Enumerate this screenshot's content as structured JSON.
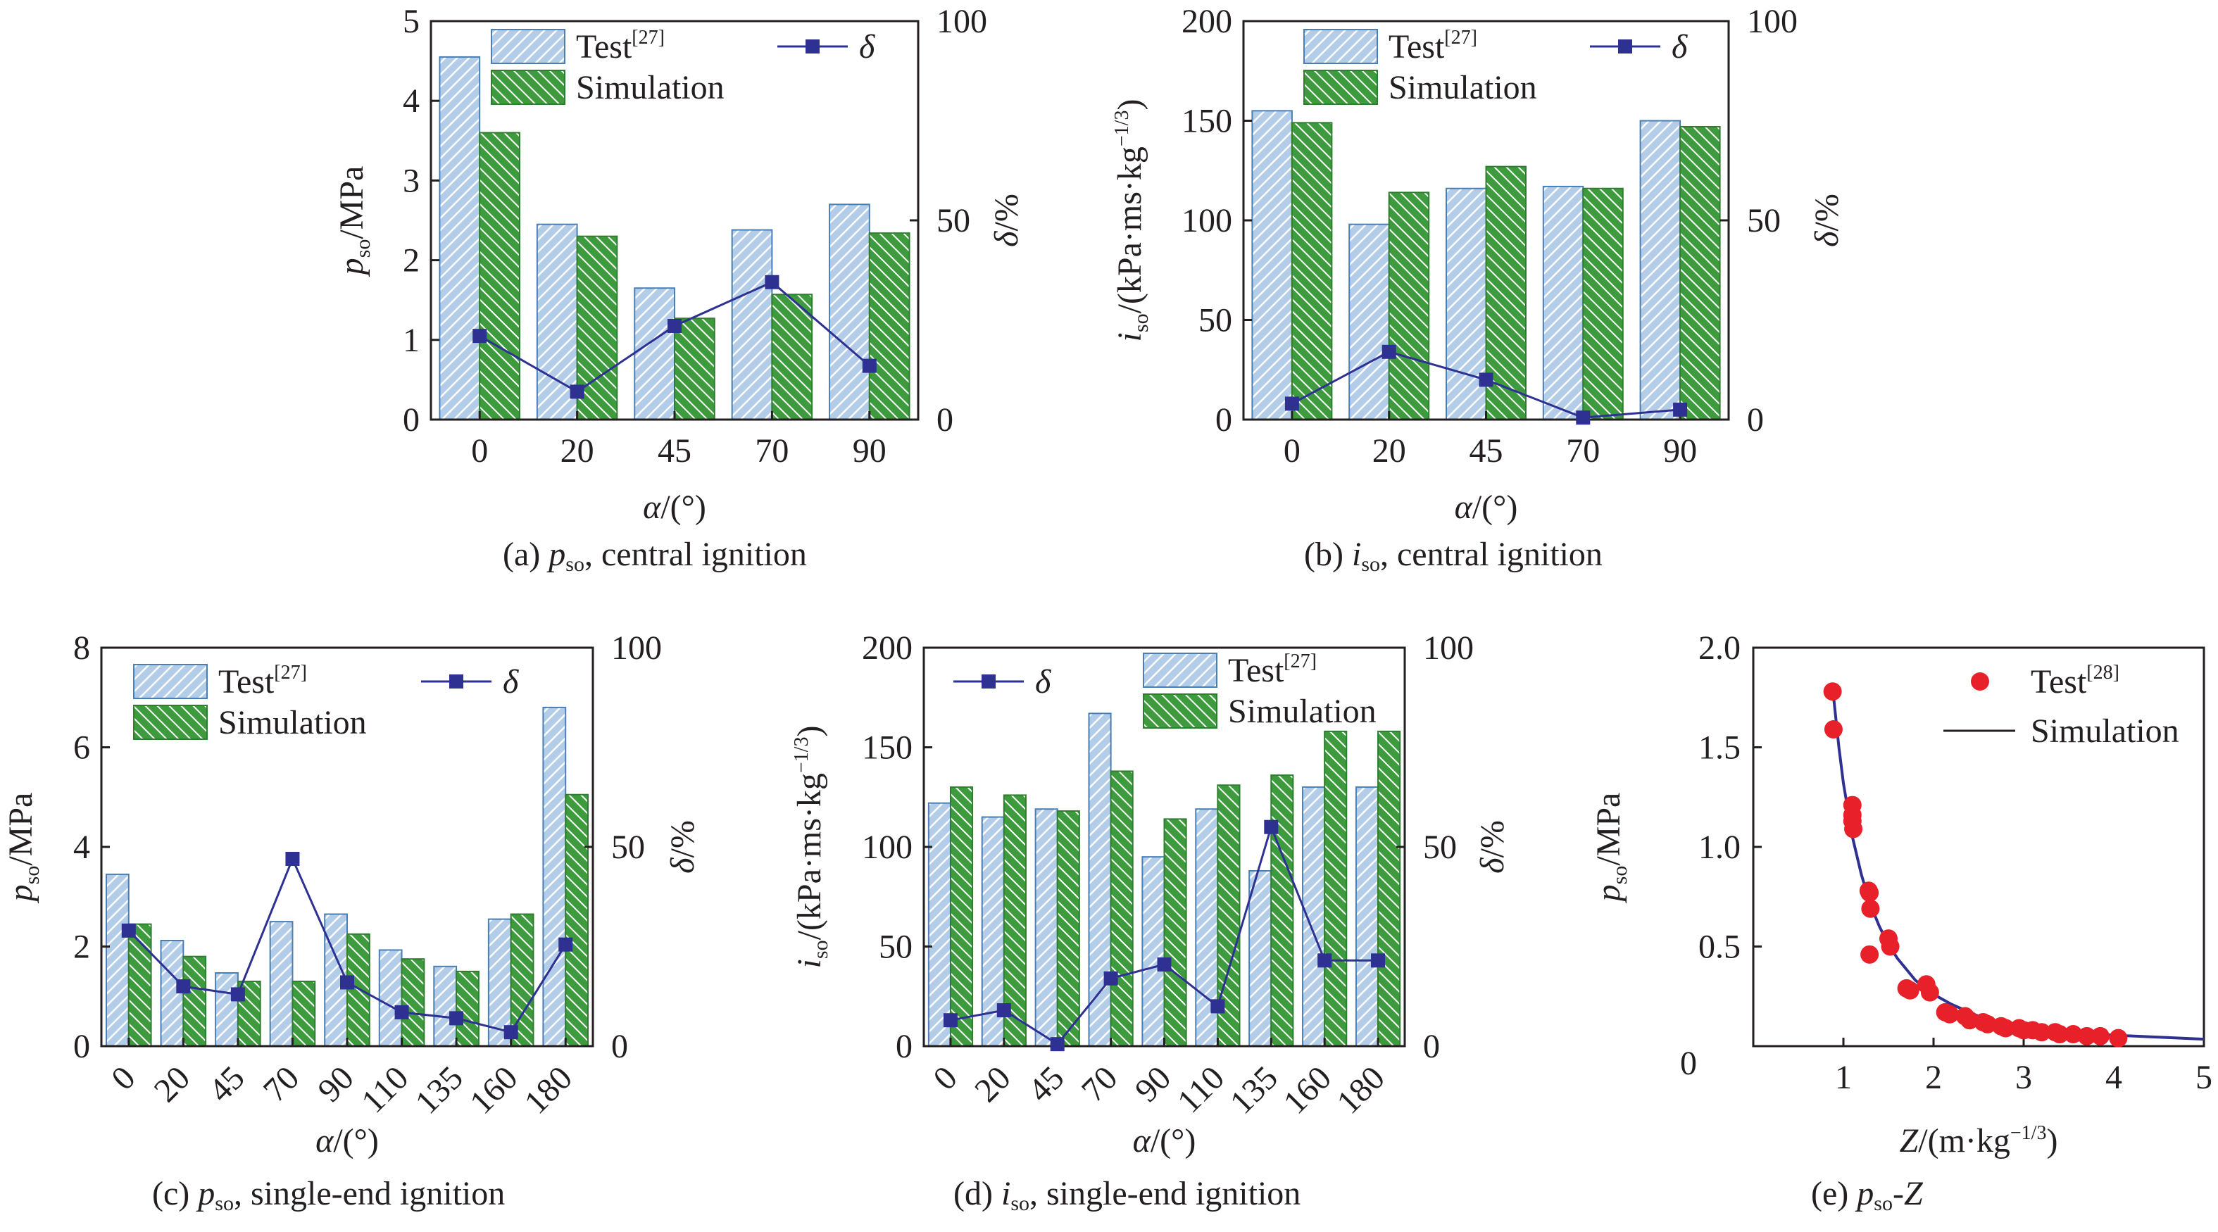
{
  "chart_data": [
    {
      "id": "a",
      "type": "bar",
      "caption": {
        "label": "(a)",
        "symbol": "p",
        "sub": "so",
        "text": ", central ignition"
      },
      "categories": [
        "0",
        "20",
        "45",
        "70",
        "90"
      ],
      "series": [
        {
          "name": "Test",
          "ref": "[27]",
          "values": [
            4.55,
            2.45,
            1.65,
            2.38,
            2.7
          ],
          "color": "#5b8fc9"
        },
        {
          "name": "Simulation",
          "values": [
            3.6,
            2.3,
            1.27,
            1.57,
            2.34
          ],
          "color": "#3d9a3d"
        }
      ],
      "line_series": {
        "name": "δ",
        "values": [
          21,
          7,
          23.5,
          34.5,
          13.5
        ],
        "color": "#2e3192"
      },
      "xlabel": {
        "sym": "α",
        "unit": "/(°)"
      },
      "ylabel": {
        "sym": "p",
        "sub": "so",
        "unit": "/MPa"
      },
      "y2label": {
        "sym": "δ",
        "unit": "/%"
      },
      "ylim": [
        0,
        5
      ],
      "yticks": [
        "0",
        "1",
        "2",
        "3",
        "4",
        "5"
      ],
      "y2lim": [
        0,
        100
      ],
      "y2ticks": [
        "0",
        "50",
        "100"
      ],
      "legend": "top"
    },
    {
      "id": "b",
      "type": "bar",
      "caption": {
        "label": "(b)",
        "symbol": "i",
        "sub": "so",
        "text": ", central ignition"
      },
      "categories": [
        "0",
        "20",
        "45",
        "70",
        "90"
      ],
      "series": [
        {
          "name": "Test",
          "ref": "[27]",
          "values": [
            155,
            98,
            116,
            117,
            150
          ],
          "color": "#5b8fc9"
        },
        {
          "name": "Simulation",
          "values": [
            149,
            114,
            127,
            116,
            147
          ],
          "color": "#3d9a3d"
        }
      ],
      "line_series": {
        "name": "δ",
        "values": [
          4,
          17,
          10,
          0.5,
          2.5
        ],
        "color": "#2e3192"
      },
      "xlabel": {
        "sym": "α",
        "unit": "/(°)"
      },
      "ylabel": {
        "sym": "i",
        "sub": "so",
        "unit": "/(kPa·ms·kg",
        "sup": "−1/3",
        "close": ")"
      },
      "y2label": {
        "sym": "δ",
        "unit": "/%"
      },
      "ylim": [
        0,
        200
      ],
      "yticks": [
        "0",
        "50",
        "100",
        "150",
        "200"
      ],
      "y2lim": [
        0,
        100
      ],
      "y2ticks": [
        "0",
        "50",
        "100"
      ],
      "legend": "top"
    },
    {
      "id": "c",
      "type": "bar",
      "caption": {
        "label": "(c)",
        "symbol": "p",
        "sub": "so",
        "text": ", single-end ignition"
      },
      "categories": [
        "0",
        "20",
        "45",
        "70",
        "90",
        "110",
        "135",
        "160",
        "180"
      ],
      "series": [
        {
          "name": "Test",
          "ref": "[27]",
          "values": [
            3.45,
            2.12,
            1.47,
            2.5,
            2.65,
            1.93,
            1.6,
            2.55,
            6.8
          ],
          "color": "#5b8fc9"
        },
        {
          "name": "Simulation",
          "values": [
            2.45,
            1.8,
            1.3,
            1.3,
            2.25,
            1.75,
            1.5,
            2.65,
            5.05
          ],
          "color": "#3d9a3d"
        }
      ],
      "line_series": {
        "name": "δ",
        "values": [
          29,
          15,
          13,
          47,
          16,
          8.5,
          7,
          3.5,
          25.5
        ],
        "color": "#2e3192"
      },
      "xlabel": {
        "sym": "α",
        "unit": "/(°)"
      },
      "ylabel": {
        "sym": "p",
        "sub": "so",
        "unit": "/MPa"
      },
      "y2label": {
        "sym": "δ",
        "unit": "/%"
      },
      "ylim": [
        0,
        8
      ],
      "yticks": [
        "0",
        "2",
        "4",
        "6",
        "8"
      ],
      "y2lim": [
        0,
        100
      ],
      "y2ticks": [
        "0",
        "50",
        "100"
      ],
      "legend": "top"
    },
    {
      "id": "d",
      "type": "bar",
      "caption": {
        "label": "(d)",
        "symbol": "i",
        "sub": "so",
        "text": ", single-end ignition"
      },
      "categories": [
        "0",
        "20",
        "45",
        "70",
        "90",
        "110",
        "135",
        "160",
        "180"
      ],
      "series": [
        {
          "name": "Test",
          "ref": "[27]",
          "values": [
            122,
            115,
            119,
            167,
            95,
            119,
            88,
            130,
            130
          ],
          "color": "#5b8fc9"
        },
        {
          "name": "Simulation",
          "values": [
            130,
            126,
            118,
            138,
            114,
            131,
            136,
            158,
            158
          ],
          "color": "#3d9a3d"
        }
      ],
      "line_series": {
        "name": "δ",
        "values": [
          6.5,
          9,
          0.5,
          17,
          20.5,
          10,
          55,
          21.5,
          21.5
        ],
        "color": "#2e3192"
      },
      "xlabel": {
        "sym": "α",
        "unit": "/(°)"
      },
      "ylabel": {
        "sym": "i",
        "sub": "so",
        "unit": "/(kPa·ms·kg",
        "sup": "−1/3",
        "close": ")"
      },
      "y2label": {
        "sym": "δ",
        "unit": "/%"
      },
      "ylim": [
        0,
        200
      ],
      "yticks": [
        "0",
        "50",
        "100",
        "150",
        "200"
      ],
      "y2lim": [
        0,
        100
      ],
      "y2ticks": [
        "0",
        "50",
        "100"
      ],
      "legend": "top"
    },
    {
      "id": "e",
      "type": "scatter",
      "caption": {
        "label": "(e)",
        "symbol": "p",
        "sub": "so",
        "text": "-",
        "symbol2": "Z"
      },
      "series": [
        {
          "name": "Test",
          "ref": "[28]",
          "color": "#e8202a",
          "x": [
            0.88,
            0.89,
            1.1,
            1.1,
            1.1,
            1.11,
            1.28,
            1.29,
            1.3,
            1.29,
            1.5,
            1.52,
            1.7,
            1.74,
            1.92,
            1.96,
            2.13,
            2.18,
            2.35,
            2.4,
            2.55,
            2.6,
            2.75,
            2.8,
            2.95,
            3.0,
            3.1,
            3.2,
            3.35,
            3.4,
            3.55,
            3.7,
            3.85,
            4.05
          ],
          "y": [
            1.78,
            1.59,
            1.21,
            1.16,
            1.13,
            1.09,
            0.78,
            0.77,
            0.69,
            0.46,
            0.54,
            0.5,
            0.29,
            0.28,
            0.31,
            0.27,
            0.17,
            0.16,
            0.15,
            0.13,
            0.12,
            0.11,
            0.1,
            0.09,
            0.09,
            0.08,
            0.08,
            0.07,
            0.07,
            0.06,
            0.06,
            0.05,
            0.05,
            0.04
          ]
        },
        {
          "name": "Simulation",
          "type": "line",
          "color": "#2e3192",
          "x": [
            0.88,
            0.95,
            1.0,
            1.1,
            1.2,
            1.3,
            1.4,
            1.5,
            1.6,
            1.8,
            2.0,
            2.2,
            2.5,
            2.8,
            3.0,
            3.5,
            4.0,
            4.5,
            5.0
          ],
          "y": [
            1.8,
            1.5,
            1.32,
            1.05,
            0.86,
            0.71,
            0.6,
            0.51,
            0.44,
            0.33,
            0.26,
            0.21,
            0.15,
            0.115,
            0.1,
            0.07,
            0.055,
            0.045,
            0.035
          ]
        }
      ],
      "xlabel": {
        "sym": "Z",
        "unit": "/(m·kg",
        "sup": "−1/3",
        "close": ")"
      },
      "ylabel": {
        "sym": "p",
        "sub": "so",
        "unit": "/MPa"
      },
      "xlim": [
        0,
        5
      ],
      "xticks": [
        "0",
        "1",
        "2",
        "3",
        "4",
        "5"
      ],
      "ylim": [
        0,
        2.0
      ],
      "yticks": [
        "0.5",
        "1.0",
        "1.5",
        "2.0"
      ],
      "legend": "top-right"
    }
  ]
}
